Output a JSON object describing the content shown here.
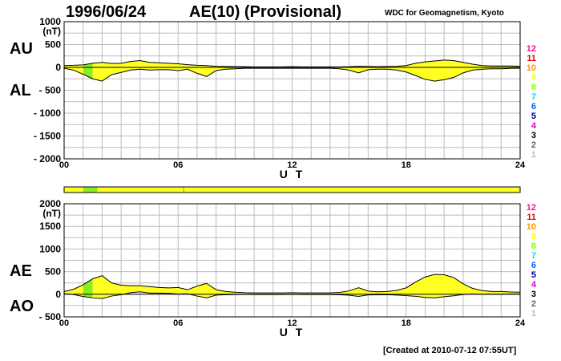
{
  "header": {
    "date": "1996/06/24",
    "product": "AE(10) (Provisional)",
    "source": "WDC for Geomagnetism, Kyoto"
  },
  "footer": {
    "created": "[Created at 2010-07-12 07:55UT]"
  },
  "side_labels": {
    "au": "AU",
    "al": "AL",
    "ae": "AE",
    "ao": "AO"
  },
  "colors": {
    "yellow": "#ffff22",
    "green": "#88ee22",
    "grid": "#bbbbbb",
    "trace": "#000000"
  },
  "legend": [
    {
      "label": "12",
      "color": "#ff1493"
    },
    {
      "label": "11",
      "color": "#dd0000"
    },
    {
      "label": "10",
      "color": "#ff9900"
    },
    {
      "label": "9",
      "color": "#ffff00"
    },
    {
      "label": "8",
      "color": "#88ff00"
    },
    {
      "label": "7",
      "color": "#00dddd"
    },
    {
      "label": "6",
      "color": "#0066ff"
    },
    {
      "label": "5",
      "color": "#000099"
    },
    {
      "label": "4",
      "color": "#cc00cc"
    },
    {
      "label": "3",
      "color": "#000000"
    },
    {
      "label": "2",
      "color": "#666666"
    },
    {
      "label": "1",
      "color": "#bbbbbb"
    }
  ],
  "chart_data": [
    {
      "type": "area",
      "title": "AU / AL",
      "ylabel": "(nT)",
      "xlabel": "U T",
      "xlim": [
        0,
        24
      ],
      "ylim": [
        -2000,
        1000
      ],
      "xtick_labels": [
        "00",
        "06",
        "12",
        "18",
        "24"
      ],
      "ytick_labels": [
        "1000",
        "500",
        "0",
        "- 500",
        "- 1000",
        "- 1500",
        "- 2000"
      ],
      "grid": true,
      "station_coverage": [
        {
          "from": 0,
          "to": 1.0,
          "stations": 10
        },
        {
          "from": 1.0,
          "to": 1.75,
          "stations": 8
        },
        {
          "from": 1.75,
          "to": 24,
          "stations": 10
        }
      ],
      "series": [
        {
          "name": "AU",
          "x": [
            0,
            0.5,
            1,
            1.5,
            2,
            2.5,
            3,
            3.5,
            4,
            4.5,
            5,
            5.5,
            6,
            6.5,
            7,
            7.5,
            8,
            8.5,
            9,
            9.5,
            10,
            10.5,
            11,
            11.5,
            12,
            12.5,
            13,
            13.5,
            14,
            14.5,
            15,
            15.5,
            16,
            16.5,
            17,
            17.5,
            18,
            18.5,
            19,
            19.5,
            20,
            20.5,
            21,
            21.5,
            22,
            22.5,
            23,
            23.5,
            24
          ],
          "values": [
            40,
            45,
            55,
            90,
            110,
            85,
            90,
            130,
            150,
            110,
            100,
            90,
            80,
            60,
            45,
            40,
            25,
            20,
            15,
            15,
            10,
            10,
            10,
            10,
            15,
            10,
            10,
            10,
            10,
            10,
            15,
            25,
            20,
            15,
            20,
            25,
            40,
            90,
            120,
            140,
            160,
            150,
            110,
            70,
            40,
            30,
            30,
            30,
            25
          ]
        },
        {
          "name": "AL",
          "x": [
            0,
            0.5,
            1,
            1.5,
            2,
            2.5,
            3,
            3.5,
            4,
            4.5,
            5,
            5.5,
            6,
            6.5,
            7,
            7.5,
            8,
            8.5,
            9,
            9.5,
            10,
            10.5,
            11,
            11.5,
            12,
            12.5,
            13,
            13.5,
            14,
            14.5,
            15,
            15.5,
            16,
            16.5,
            17,
            17.5,
            18,
            18.5,
            19,
            19.5,
            20,
            20.5,
            21,
            21.5,
            22,
            22.5,
            23,
            23.5,
            24
          ],
          "values": [
            -20,
            -60,
            -150,
            -250,
            -300,
            -160,
            -110,
            -60,
            -40,
            -60,
            -50,
            -50,
            -70,
            -40,
            -130,
            -200,
            -70,
            -40,
            -30,
            -20,
            -20,
            -20,
            -20,
            -20,
            -20,
            -20,
            -20,
            -20,
            -20,
            -30,
            -60,
            -120,
            -50,
            -40,
            -40,
            -60,
            -100,
            -180,
            -260,
            -300,
            -270,
            -220,
            -120,
            -60,
            -40,
            -30,
            -30,
            -20,
            -20
          ]
        }
      ]
    },
    {
      "type": "area",
      "title": "AE / AO",
      "ylabel": "(nT)",
      "xlabel": "U T",
      "xlim": [
        0,
        24
      ],
      "ylim": [
        -500,
        2000
      ],
      "xtick_labels": [
        "00",
        "06",
        "12",
        "18",
        "24"
      ],
      "ytick_labels": [
        "2000",
        "1500",
        "1000",
        "500",
        "0",
        "- 500"
      ],
      "grid": true,
      "series": [
        {
          "name": "AE",
          "x": [
            0,
            0.5,
            1,
            1.5,
            2,
            2.5,
            3,
            3.5,
            4,
            4.5,
            5,
            5.5,
            6,
            6.5,
            7,
            7.5,
            8,
            8.5,
            9,
            9.5,
            10,
            10.5,
            11,
            11.5,
            12,
            12.5,
            13,
            13.5,
            14,
            14.5,
            15,
            15.5,
            16,
            16.5,
            17,
            17.5,
            18,
            18.5,
            19,
            19.5,
            20,
            20.5,
            21,
            21.5,
            22,
            22.5,
            23,
            23.5,
            24
          ],
          "values": [
            60,
            110,
            210,
            340,
            410,
            250,
            200,
            190,
            190,
            170,
            150,
            140,
            150,
            100,
            180,
            240,
            100,
            60,
            45,
            35,
            30,
            30,
            30,
            30,
            35,
            30,
            30,
            30,
            30,
            40,
            75,
            145,
            70,
            55,
            60,
            85,
            140,
            270,
            380,
            440,
            430,
            370,
            230,
            130,
            80,
            60,
            60,
            50,
            45
          ]
        },
        {
          "name": "AO",
          "x": [
            0,
            0.5,
            1,
            1.5,
            2,
            2.5,
            3,
            3.5,
            4,
            4.5,
            5,
            5.5,
            6,
            6.5,
            7,
            7.5,
            8,
            8.5,
            9,
            9.5,
            10,
            10.5,
            11,
            11.5,
            12,
            12.5,
            13,
            13.5,
            14,
            14.5,
            15,
            15.5,
            16,
            16.5,
            17,
            17.5,
            18,
            18.5,
            19,
            19.5,
            20,
            20.5,
            21,
            21.5,
            22,
            22.5,
            23,
            23.5,
            24
          ],
          "values": [
            10,
            -5,
            -50,
            -80,
            -95,
            -40,
            -10,
            35,
            55,
            25,
            25,
            20,
            5,
            10,
            -40,
            -80,
            -20,
            -10,
            -5,
            -3,
            -5,
            -5,
            -5,
            -5,
            -3,
            -5,
            -5,
            -5,
            -5,
            -10,
            -22,
            -48,
            -15,
            -12,
            -10,
            -18,
            -30,
            -45,
            -70,
            -80,
            -55,
            -35,
            -5,
            5,
            0,
            0,
            0,
            5,
            3
          ]
        }
      ]
    }
  ]
}
